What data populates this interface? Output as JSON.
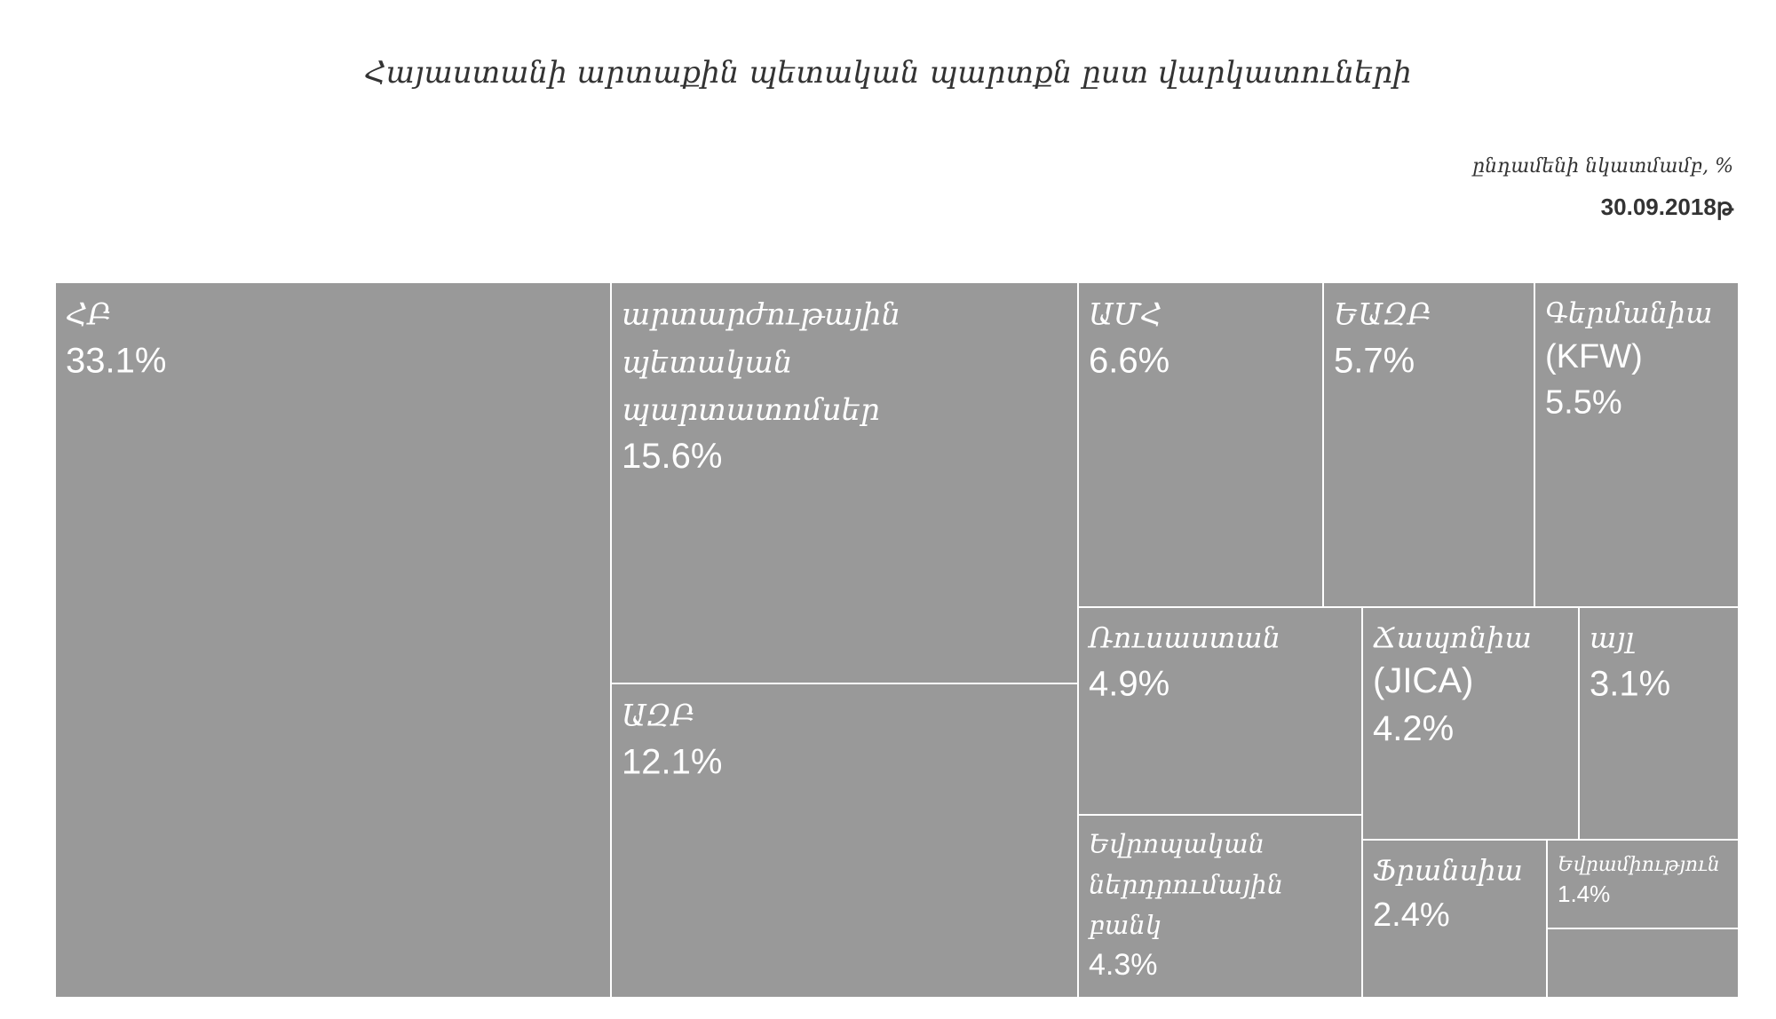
{
  "title": "Հայաստանի արտաքին պետական պարտքն ըստ վարկատուների",
  "subtitle": "ընդամենի նկատմամբ, %",
  "date": "30.09.2018թ",
  "chart_data": {
    "type": "treemap",
    "title": "Հայաստանի արտաքին պետական պարտքն ըստ վարկատուների",
    "subtitle": "ընդամենի նկատմամբ, %",
    "date": "30.09.2018թ",
    "unit": "%",
    "color": "#999999",
    "border_color": "#ffffff",
    "items": [
      {
        "name": "ՀԲ",
        "value": 33.1,
        "label": "33.1%"
      },
      {
        "name": "արտարժութային պետական պարտատոմսեր",
        "value": 15.6,
        "label": "15.6%"
      },
      {
        "name": "ԱԶԲ",
        "value": 12.1,
        "label": "12.1%"
      },
      {
        "name": "ԱՄՀ",
        "value": 6.6,
        "label": "6.6%"
      },
      {
        "name": "ԵԱԶԲ",
        "value": 5.7,
        "label": "5.7%"
      },
      {
        "name": "Գերմանիա (KFW)",
        "value": 5.5,
        "label": "5.5%"
      },
      {
        "name": "Ռուսաստան",
        "value": 4.9,
        "label": "4.9%"
      },
      {
        "name": "Եվրոպական ներդրումային բանկ",
        "value": 4.3,
        "label": "4.3%"
      },
      {
        "name": "Ճապոնիա (JICA)",
        "value": 4.2,
        "label": "4.2%"
      },
      {
        "name": "այլ",
        "value": 3.1,
        "label": "3.1%"
      },
      {
        "name": "Ֆրանսիա",
        "value": 2.4,
        "label": "2.4%"
      },
      {
        "name": "Եվրամիություն",
        "value": 1.4,
        "label": "1.4%"
      },
      {
        "name": "",
        "value": 1.1,
        "label": ""
      }
    ]
  }
}
